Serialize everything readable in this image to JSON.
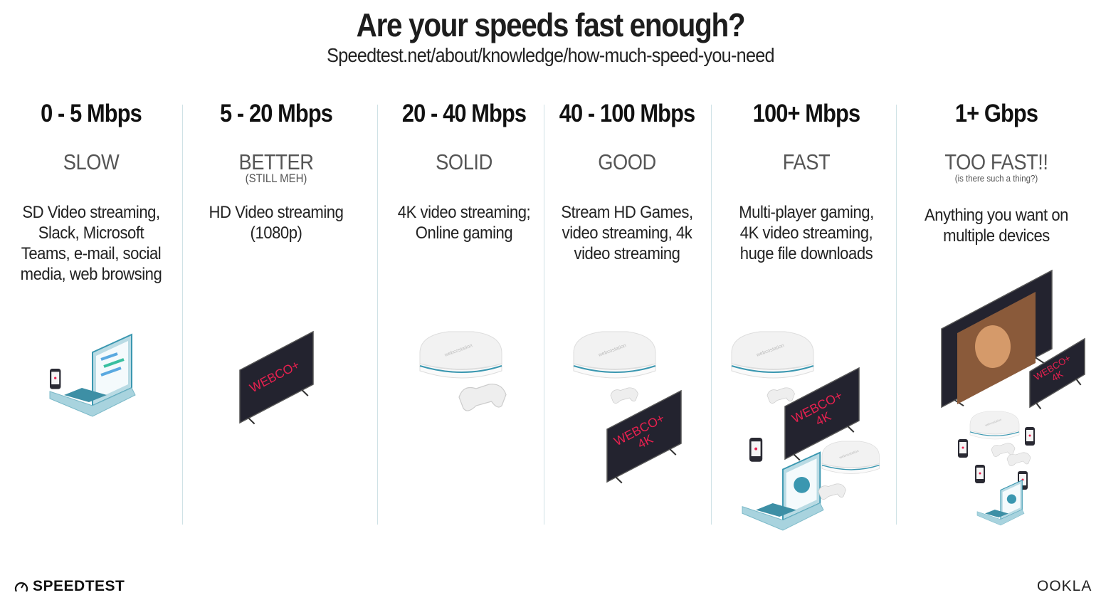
{
  "header": {
    "title": "Are your speeds fast enough?",
    "subtitle": "Speedtest.net/about/knowledge/how-much-speed-you-need"
  },
  "tiers": [
    {
      "speed": "0 - 5 Mbps",
      "label": "SLOW",
      "sublabel": "",
      "description": "SD Video streaming, Slack, Microsoft Teams, e-mail, social media, web browsing"
    },
    {
      "speed": "5 - 20 Mbps",
      "label": "BETTER",
      "sublabel": "(STILL MEH)",
      "description": "HD Video streaming (1080p)"
    },
    {
      "speed": "20 - 40 Mbps",
      "label": "SOLID",
      "sublabel": "",
      "description": "4K video streaming; Online gaming"
    },
    {
      "speed": "40 - 100 Mbps",
      "label": "GOOD",
      "sublabel": "",
      "description": "Stream HD Games, video streaming, 4k video streaming"
    },
    {
      "speed": "100+ Mbps",
      "label": "FAST",
      "sublabel": "",
      "description": "Multi-player gaming, 4K video streaming, huge file downloads"
    },
    {
      "speed": "1+ Gbps",
      "label": "TOO FAST!!",
      "sublabel": "(is there such a thing?)",
      "description": "Anything you want on multiple devices"
    }
  ],
  "illustrations": {
    "tv_brand": "WEBCO+",
    "tv_4k": "4K",
    "console_brand": "webcostation"
  },
  "footer": {
    "left_logo": "SPEEDTEST",
    "right_logo": "OOKLA"
  },
  "colors": {
    "accent_teal": "#3a97b0",
    "tv_screen": "#23232f",
    "tv_text": "#e8204f"
  }
}
